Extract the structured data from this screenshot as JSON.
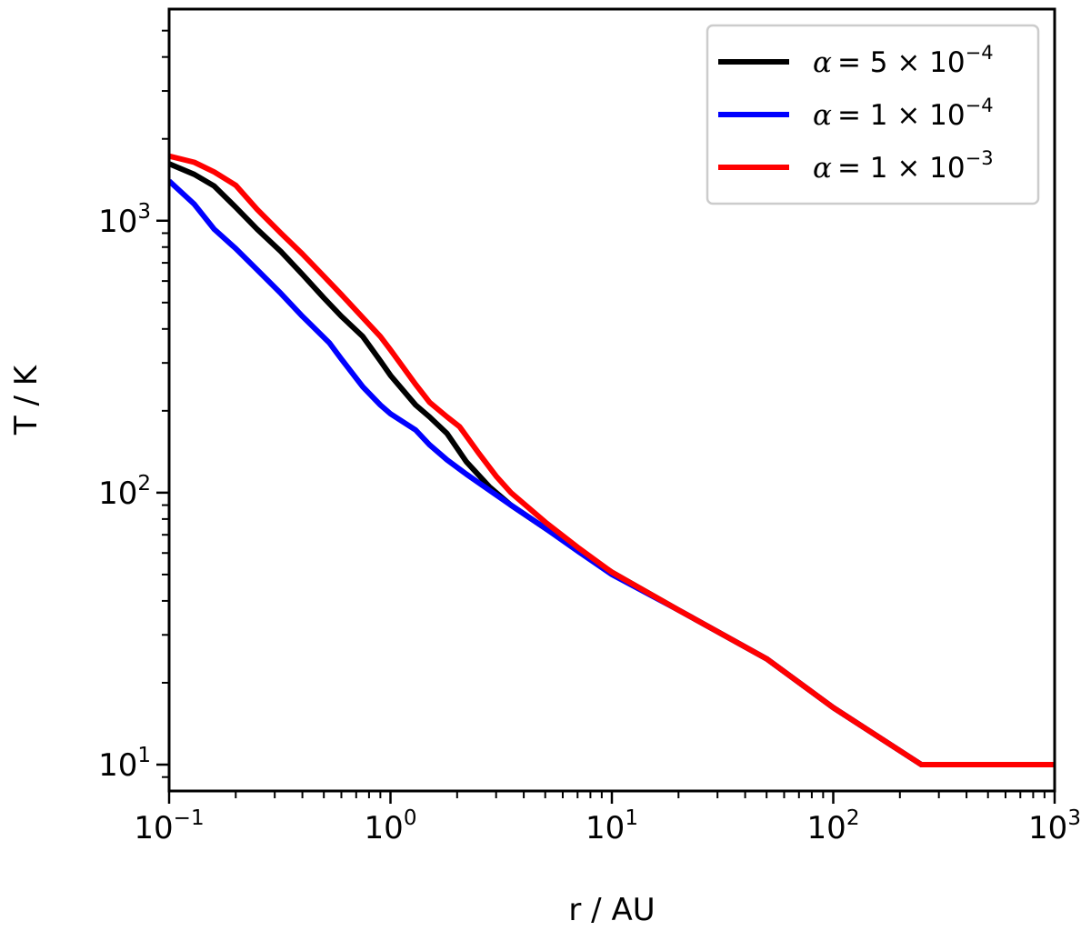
{
  "chart_data": {
    "type": "line",
    "title": "",
    "xlabel": "r / AU",
    "ylabel": "T / K",
    "xscale": "log",
    "yscale": "log",
    "xlim": [
      0.1,
      1000
    ],
    "ylim": [
      8,
      6000
    ],
    "grid": false,
    "legend_position": "top-right",
    "x_ticks": [
      {
        "value": 0.1,
        "base": "10",
        "exp": "−1"
      },
      {
        "value": 1,
        "base": "10",
        "exp": "0"
      },
      {
        "value": 10,
        "base": "10",
        "exp": "1"
      },
      {
        "value": 100,
        "base": "10",
        "exp": "2"
      },
      {
        "value": 1000,
        "base": "10",
        "exp": "3"
      }
    ],
    "y_ticks": [
      {
        "value": 10,
        "base": "10",
        "exp": "1"
      },
      {
        "value": 100,
        "base": "10",
        "exp": "2"
      },
      {
        "value": 1000,
        "base": "10",
        "exp": "3"
      }
    ],
    "series": [
      {
        "name_prefix": "= 5 × 10",
        "name_exp": "−4",
        "color": "#000000",
        "points": [
          [
            0.1,
            1620
          ],
          [
            0.13,
            1480
          ],
          [
            0.16,
            1340
          ],
          [
            0.2,
            1120
          ],
          [
            0.25,
            930
          ],
          [
            0.32,
            770
          ],
          [
            0.4,
            635
          ],
          [
            0.5,
            520
          ],
          [
            0.6,
            445
          ],
          [
            0.75,
            375
          ],
          [
            0.9,
            305
          ],
          [
            1.0,
            270
          ],
          [
            1.3,
            210
          ],
          [
            1.5,
            190
          ],
          [
            1.8,
            165
          ],
          [
            2.2,
            130
          ],
          [
            2.8,
            105
          ],
          [
            3.5,
            90
          ],
          [
            5,
            74
          ],
          [
            7,
            62
          ],
          [
            10,
            51
          ],
          [
            20,
            37
          ],
          [
            50,
            24.5
          ],
          [
            100,
            16.2
          ],
          [
            250,
            10
          ],
          [
            1000,
            10
          ]
        ]
      },
      {
        "name_prefix": "= 1 × 10",
        "name_exp": "−4",
        "color": "#0000ff",
        "points": [
          [
            0.1,
            1400
          ],
          [
            0.13,
            1150
          ],
          [
            0.16,
            930
          ],
          [
            0.2,
            790
          ],
          [
            0.25,
            660
          ],
          [
            0.32,
            540
          ],
          [
            0.4,
            445
          ],
          [
            0.53,
            355
          ],
          [
            0.6,
            310
          ],
          [
            0.75,
            245
          ],
          [
            0.9,
            210
          ],
          [
            1.0,
            195
          ],
          [
            1.3,
            170
          ],
          [
            1.5,
            150
          ],
          [
            1.8,
            132
          ],
          [
            2.2,
            117
          ],
          [
            2.8,
            102
          ],
          [
            3.5,
            90
          ],
          [
            5,
            74
          ],
          [
            7,
            61
          ],
          [
            10,
            50
          ],
          [
            20,
            37
          ],
          [
            50,
            24.5
          ],
          [
            100,
            16.2
          ],
          [
            250,
            10
          ],
          [
            1000,
            10
          ]
        ]
      },
      {
        "name_prefix": "= 1 × 10",
        "name_exp": "−3",
        "color": "#ff0000",
        "points": [
          [
            0.1,
            1730
          ],
          [
            0.13,
            1640
          ],
          [
            0.16,
            1510
          ],
          [
            0.2,
            1350
          ],
          [
            0.25,
            1100
          ],
          [
            0.32,
            900
          ],
          [
            0.4,
            755
          ],
          [
            0.5,
            625
          ],
          [
            0.6,
            535
          ],
          [
            0.75,
            440
          ],
          [
            0.9,
            375
          ],
          [
            1.0,
            335
          ],
          [
            1.3,
            250
          ],
          [
            1.5,
            215
          ],
          [
            1.8,
            190
          ],
          [
            2.05,
            175
          ],
          [
            2.5,
            140
          ],
          [
            3,
            115
          ],
          [
            3.5,
            100
          ],
          [
            5,
            78
          ],
          [
            7,
            63
          ],
          [
            10,
            51
          ],
          [
            20,
            37
          ],
          [
            50,
            24.5
          ],
          [
            100,
            16.2
          ],
          [
            250,
            10
          ],
          [
            1000,
            10
          ]
        ]
      }
    ]
  }
}
